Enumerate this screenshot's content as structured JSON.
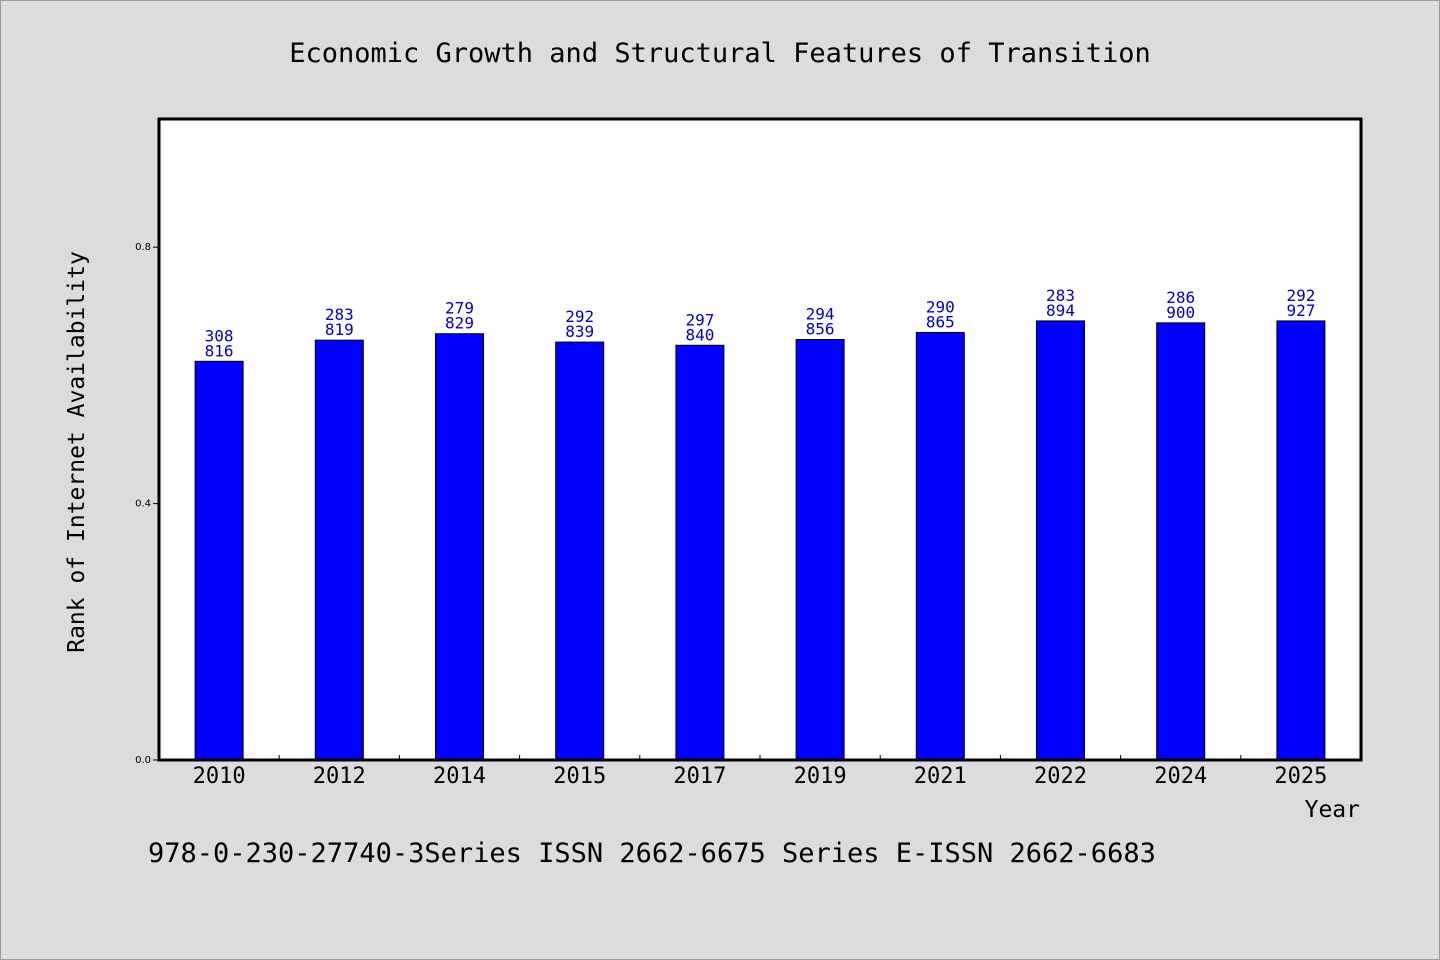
{
  "chart_data": {
    "type": "bar",
    "title": "Economic Growth and Structural Features of Transition",
    "xlabel": "Year",
    "ylabel": "Rank of Internet Availability",
    "categories": [
      "2010",
      "2012",
      "2014",
      "2015",
      "2017",
      "2019",
      "2021",
      "2022",
      "2024",
      "2025"
    ],
    "values": [
      0.622,
      0.655,
      0.665,
      0.652,
      0.647,
      0.656,
      0.667,
      0.685,
      0.682,
      0.685
    ],
    "label_top": [
      "308",
      "283",
      "279",
      "292",
      "297",
      "294",
      "290",
      "283",
      "286",
      "292"
    ],
    "label_bottom": [
      "816",
      "819",
      "829",
      "839",
      "840",
      "856",
      "865",
      "894",
      "900",
      "927"
    ],
    "ylim": [
      0,
      1.0
    ],
    "yticks": [
      0.0,
      0.4,
      0.8
    ],
    "ytick_labels": [
      "0.0",
      "0.4",
      "0.8"
    ],
    "grid": false,
    "colors": {
      "bar": "#0000ff",
      "bar_label": "#0000cc",
      "plot_background": "#ffffff",
      "figure_background": "#dcdcdc"
    }
  },
  "footer_text": "978-0-230-27740-3Series ISSN 2662-6675 Series E-ISSN 2662-6683"
}
